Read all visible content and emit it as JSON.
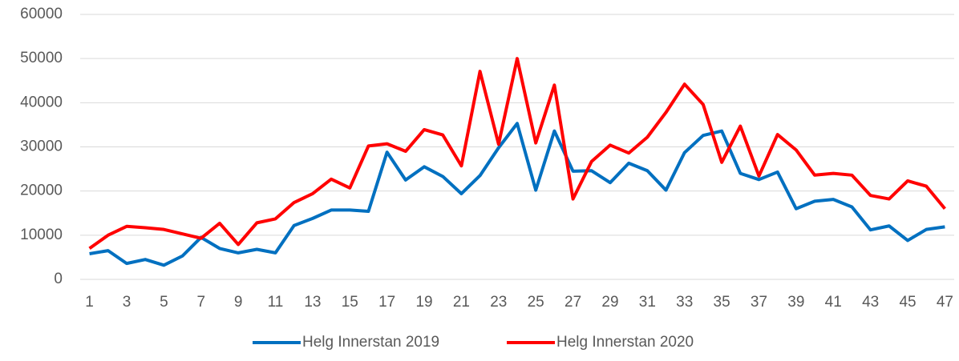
{
  "chart_data": {
    "type": "line",
    "categories": [
      1,
      null,
      3,
      null,
      5,
      null,
      7,
      null,
      9,
      null,
      11,
      null,
      13,
      null,
      15,
      null,
      17,
      null,
      19,
      null,
      21,
      null,
      23,
      null,
      25,
      null,
      27,
      null,
      29,
      null,
      31,
      null,
      33,
      null,
      35,
      null,
      37,
      null,
      39,
      null,
      41,
      null,
      43,
      null,
      45,
      null,
      47
    ],
    "series": [
      {
        "name": "Helg Innerstan 2019",
        "color": "#0070c0",
        "values": [
          5800,
          6500,
          3600,
          4500,
          3200,
          5300,
          9500,
          7000,
          6000,
          6800,
          6000,
          12200,
          13800,
          15700,
          15700,
          15400,
          28800,
          22500,
          25500,
          23300,
          19400,
          23500,
          29800,
          35300,
          20200,
          33600,
          24500,
          24600,
          21900,
          26300,
          24600,
          20200,
          28700,
          32600,
          33600,
          24000,
          22600,
          24300,
          16000,
          17700,
          18100,
          16400,
          11200,
          12100,
          8800,
          11300,
          11900
        ]
      },
      {
        "name": "Helg Innerstan 2020",
        "color": "#ff0000",
        "values": [
          7000,
          10000,
          12000,
          11700,
          11300,
          10300,
          9300,
          12700,
          7900,
          12800,
          13700,
          17400,
          19400,
          22700,
          20700,
          30200,
          30700,
          29000,
          33900,
          32700,
          25700,
          47100,
          30600,
          50000,
          30900,
          44000,
          18200,
          26700,
          30400,
          28600,
          32200,
          37800,
          44200,
          39600,
          26500,
          34700,
          23400,
          32800,
          29300,
          23600,
          24000,
          23600,
          19000,
          18200,
          22300,
          21100,
          16000
        ]
      }
    ],
    "ylim": [
      0,
      60000
    ],
    "yticks": [
      0,
      10000,
      20000,
      30000,
      40000,
      50000,
      60000
    ],
    "grid": true,
    "legend": "bottom"
  }
}
